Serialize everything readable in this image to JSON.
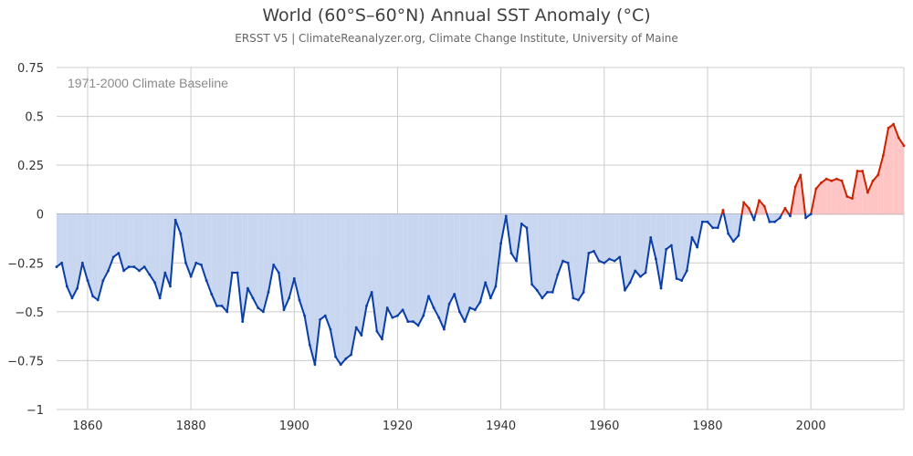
{
  "chart_data": {
    "type": "area",
    "title": "World (60°S–60°N) Annual SST Anomaly (°C)",
    "subtitle": "ERSST V5 | ClimateReanalyzer.org, Climate Change Institute, University of Maine",
    "annotation": "1971-2000 Climate Baseline",
    "xlabel": "",
    "ylabel": "",
    "xlim": [
      1854,
      2018
    ],
    "ylim": [
      -1,
      0.75
    ],
    "y_ticks": [
      -1,
      -0.75,
      -0.5,
      -0.25,
      0,
      0.25,
      0.5,
      0.75
    ],
    "y_tick_labels": [
      "−1",
      "−0.75",
      "−0.5",
      "−0.25",
      "0",
      "0.25",
      "0.5",
      "0.75"
    ],
    "x_ticks": [
      1860,
      1880,
      1900,
      1920,
      1940,
      1960,
      1980,
      2000
    ],
    "x_tick_labels": [
      "1860",
      "1880",
      "1900",
      "1920",
      "1940",
      "1960",
      "1980",
      "2000"
    ],
    "grid": true,
    "colors": {
      "negative_line": "#0a3fa8",
      "negative_fill": "#c9d6f0",
      "positive_line": "#cc2200",
      "positive_fill": "#ffc4c4",
      "grid": "#cccccc"
    },
    "series": [
      {
        "x": [
          1854,
          1855,
          1856,
          1857,
          1858,
          1859,
          1860,
          1861,
          1862,
          1863,
          1864,
          1865,
          1866,
          1867,
          1868,
          1869,
          1870,
          1871,
          1872,
          1873,
          1874,
          1875,
          1876,
          1877,
          1878,
          1879,
          1880,
          1881,
          1882,
          1883,
          1884,
          1885,
          1886,
          1887,
          1888,
          1889,
          1890,
          1891,
          1892,
          1893,
          1894,
          1895,
          1896,
          1897,
          1898,
          1899,
          1900,
          1901,
          1902,
          1903,
          1904,
          1905,
          1906,
          1907,
          1908,
          1909,
          1910,
          1911,
          1912,
          1913,
          1914,
          1915,
          1916,
          1917,
          1918,
          1919,
          1920,
          1921,
          1922,
          1923,
          1924,
          1925,
          1926,
          1927,
          1928,
          1929,
          1930,
          1931,
          1932,
          1933,
          1934,
          1935,
          1936,
          1937,
          1938,
          1939,
          1940,
          1941,
          1942,
          1943,
          1944,
          1945,
          1946,
          1947,
          1948,
          1949,
          1950,
          1951,
          1952,
          1953,
          1954,
          1955,
          1956,
          1957,
          1958,
          1959,
          1960,
          1961,
          1962,
          1963,
          1964,
          1965,
          1966,
          1967,
          1968,
          1969,
          1970,
          1971,
          1972,
          1973,
          1974,
          1975,
          1976,
          1977,
          1978,
          1979,
          1980,
          1981,
          1982,
          1983,
          1984,
          1985,
          1986,
          1987,
          1988,
          1989,
          1990,
          1991,
          1992,
          1993,
          1994,
          1995,
          1996,
          1997,
          1998,
          1999,
          2000,
          2001,
          2002,
          2003,
          2004,
          2005,
          2006,
          2007,
          2008,
          2009,
          2010,
          2011,
          2012,
          2013,
          2014,
          2015,
          2016,
          2017,
          2018
        ],
        "y": [
          -0.27,
          -0.25,
          -0.37,
          -0.43,
          -0.38,
          -0.25,
          -0.34,
          -0.42,
          -0.44,
          -0.34,
          -0.29,
          -0.22,
          -0.2,
          -0.29,
          -0.27,
          -0.27,
          -0.29,
          -0.27,
          -0.31,
          -0.35,
          -0.43,
          -0.3,
          -0.37,
          -0.03,
          -0.1,
          -0.25,
          -0.32,
          -0.25,
          -0.26,
          -0.34,
          -0.41,
          -0.47,
          -0.47,
          -0.5,
          -0.3,
          -0.3,
          -0.55,
          -0.38,
          -0.43,
          -0.48,
          -0.5,
          -0.4,
          -0.26,
          -0.3,
          -0.49,
          -0.43,
          -0.33,
          -0.44,
          -0.52,
          -0.67,
          -0.77,
          -0.54,
          -0.52,
          -0.59,
          -0.73,
          -0.77,
          -0.74,
          -0.72,
          -0.58,
          -0.62,
          -0.47,
          -0.4,
          -0.6,
          -0.64,
          -0.48,
          -0.53,
          -0.52,
          -0.49,
          -0.55,
          -0.55,
          -0.57,
          -0.52,
          -0.42,
          -0.48,
          -0.53,
          -0.59,
          -0.46,
          -0.41,
          -0.5,
          -0.55,
          -0.48,
          -0.49,
          -0.45,
          -0.35,
          -0.43,
          -0.37,
          -0.15,
          -0.01,
          -0.2,
          -0.24,
          -0.05,
          -0.07,
          -0.36,
          -0.39,
          -0.43,
          -0.4,
          -0.4,
          -0.31,
          -0.24,
          -0.25,
          -0.43,
          -0.44,
          -0.4,
          -0.2,
          -0.19,
          -0.24,
          -0.25,
          -0.23,
          -0.24,
          -0.22,
          -0.39,
          -0.35,
          -0.29,
          -0.32,
          -0.3,
          -0.12,
          -0.23,
          -0.38,
          -0.18,
          -0.16,
          -0.33,
          -0.34,
          -0.29,
          -0.12,
          -0.17,
          -0.04,
          -0.04,
          -0.07,
          -0.07,
          0.02,
          -0.1,
          -0.14,
          -0.11,
          0.06,
          0.03,
          -0.03,
          0.07,
          0.04,
          -0.04,
          -0.04,
          -0.02,
          0.03,
          -0.01,
          0.14,
          0.2,
          -0.02,
          0.0,
          0.13,
          0.16,
          0.18,
          0.17,
          0.18,
          0.17,
          0.09,
          0.08,
          0.22,
          0.22,
          0.11,
          0.17,
          0.2,
          0.3,
          0.44,
          0.46,
          0.39,
          0.35
        ]
      }
    ]
  }
}
